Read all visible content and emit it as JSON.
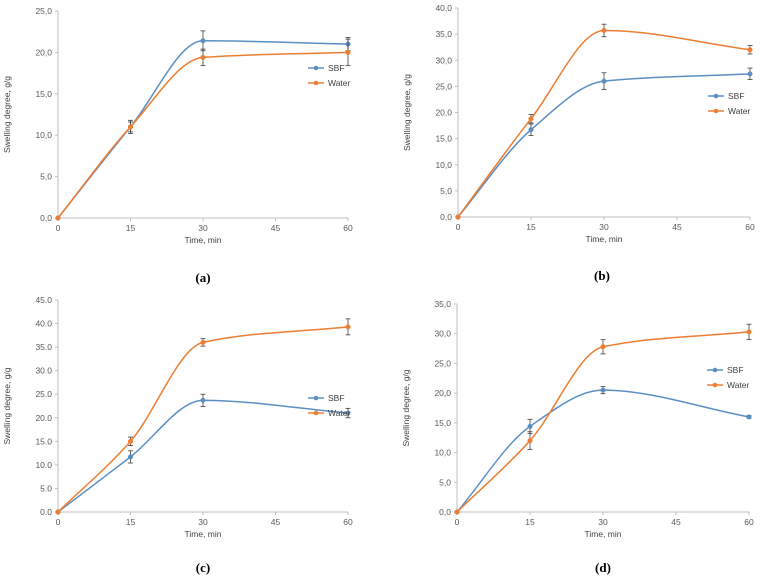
{
  "colors": {
    "sbf": "#5b8fc4",
    "water": "#ed7d31",
    "axis": "#bfbfbf",
    "errbar": "#404040"
  },
  "chart_data": [
    {
      "type": "line",
      "panel_label": "(a)",
      "xlabel": "Time, min",
      "ylabel": "Swelling degree, g/g",
      "x": [
        0,
        15,
        30,
        60
      ],
      "xticks": [
        "0",
        "15",
        "30",
        "45",
        "60"
      ],
      "xlim": [
        0,
        60
      ],
      "ylim": [
        0,
        25
      ],
      "yticks": [
        "0,0",
        "5,0",
        "10,0",
        "15,0",
        "20,0",
        "25,0"
      ],
      "grid": false,
      "legend": "right",
      "series": [
        {
          "name": "SBF",
          "values": [
            0,
            11.0,
            21.4,
            21.0
          ],
          "errors": [
            0,
            0.8,
            1.2,
            0.8
          ]
        },
        {
          "name": "Water",
          "values": [
            0,
            11.0,
            19.4,
            20.0
          ],
          "errors": [
            0,
            0.6,
            1.0,
            1.6
          ]
        }
      ]
    },
    {
      "type": "line",
      "panel_label": "(b)",
      "xlabel": "Time, min",
      "ylabel": "Swelling degree, g/g",
      "x": [
        0,
        15,
        30,
        60
      ],
      "xticks": [
        "0",
        "15",
        "30",
        "45",
        "60"
      ],
      "xlim": [
        0,
        60
      ],
      "ylim": [
        0,
        40
      ],
      "yticks": [
        "0,0",
        "5,0",
        "10,0",
        "15,0",
        "20,0",
        "25,0",
        "30,0",
        "35,0",
        "40,0"
      ],
      "grid": false,
      "legend": "right",
      "series": [
        {
          "name": "SBF",
          "values": [
            0,
            16.7,
            26.0,
            27.4
          ],
          "errors": [
            0,
            1.1,
            1.6,
            1.1
          ]
        },
        {
          "name": "Water",
          "values": [
            0,
            18.8,
            35.7,
            32.0
          ],
          "errors": [
            0,
            0.8,
            1.2,
            0.8
          ]
        }
      ]
    },
    {
      "type": "line",
      "panel_label": "(c)",
      "xlabel": "Time, min",
      "ylabel": "Swelling degree, g/g",
      "x": [
        0,
        15,
        30,
        60
      ],
      "xticks": [
        "0",
        "15",
        "30",
        "45",
        "60"
      ],
      "xlim": [
        0,
        60
      ],
      "ylim": [
        0,
        45
      ],
      "yticks": [
        "0.0",
        "5.0",
        "10.0",
        "15.0",
        "20.0",
        "25.0",
        "30.0",
        "35.0",
        "40.0",
        "45.0"
      ],
      "grid": false,
      "legend": "right",
      "series": [
        {
          "name": "SBF",
          "values": [
            0,
            11.7,
            23.7,
            21.0
          ],
          "errors": [
            0,
            1.3,
            1.3,
            1.0
          ]
        },
        {
          "name": "Water",
          "values": [
            0,
            15.0,
            36.0,
            39.3
          ],
          "errors": [
            0,
            0.9,
            0.8,
            1.7
          ]
        }
      ]
    },
    {
      "type": "line",
      "panel_label": "(d)",
      "xlabel": "Time, min",
      "ylabel": "Swelling degree, g/g",
      "x": [
        0,
        15,
        30,
        60
      ],
      "xticks": [
        "0",
        "15",
        "30",
        "45",
        "60"
      ],
      "xlim": [
        0,
        60
      ],
      "ylim": [
        0,
        35
      ],
      "yticks": [
        "0,0",
        "5,0",
        "10,0",
        "15,0",
        "20,0",
        "25,0",
        "30,0",
        "35,0"
      ],
      "grid": false,
      "legend": "right",
      "series": [
        {
          "name": "SBF",
          "values": [
            0,
            14.4,
            20.5,
            16.0
          ],
          "errors": [
            0,
            1.2,
            0.6,
            0.2
          ]
        },
        {
          "name": "Water",
          "values": [
            0,
            12.0,
            27.8,
            30.3
          ],
          "errors": [
            0,
            1.5,
            1.2,
            1.3
          ]
        }
      ]
    }
  ]
}
